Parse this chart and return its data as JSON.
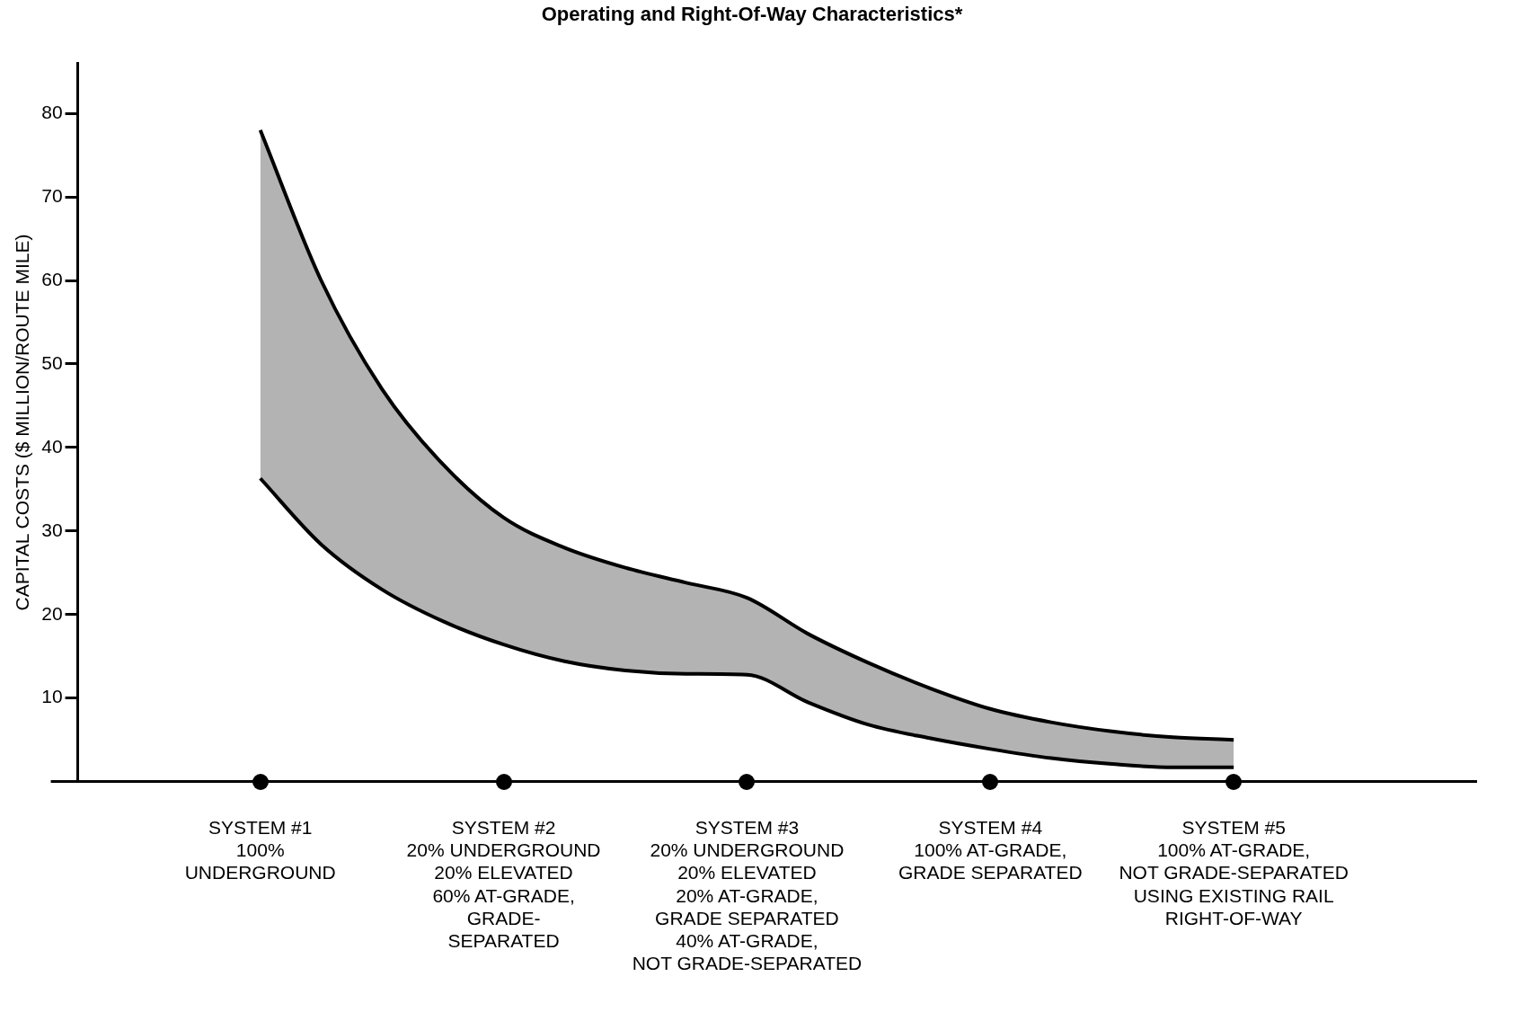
{
  "chart_data": {
    "type": "line",
    "title": "Operating and Right-Of-Way Characteristics*",
    "ylabel": "CAPITAL COSTS ($ MILLION/ROUTE MILE)",
    "categories": [
      null,
      null,
      null,
      "SYSTEM #1\n100%\nUNDERGROUND",
      null,
      null,
      null,
      "SYSTEM #2\n20% UNDERGROUND\n20% ELEVATED\n60% AT-GRADE,\nGRADE-\nSEPARATED",
      null,
      null,
      null,
      "SYSTEM #3\n20% UNDERGROUND\n20% ELEVATED\n20% AT-GRADE,\nGRADE SEPARATED\n40% AT-GRADE,\nNOT GRADE-SEPARATED",
      null,
      null,
      null,
      "SYSTEM #4\n100% AT-GRADE,\nGRADE SEPARATED",
      null,
      null,
      null,
      "SYSTEM #5\n100% AT-GRADE,\nNOT GRADE-SEPARATED\nUSING EXISTING RAIL\nRIGHT-OF-WAY",
      null,
      null,
      null,
      null
    ],
    "ylim": [
      0,
      86
    ],
    "yticks": [
      10,
      20,
      30,
      40,
      50,
      60,
      70,
      80
    ],
    "grid": false,
    "legend": false,
    "marker": "none",
    "line_style": "solid",
    "series": [
      {
        "type": "line",
        "color": "#000000",
        "values": [
          null,
          null,
          null,
          36.3,
          28.4,
          23,
          19.2,
          16.4,
          14.4,
          13.3,
          12.9,
          12.8,
          9.5,
          6.8,
          5.2,
          3.9,
          2.8,
          2.1,
          1.7,
          1.7,
          null,
          null,
          null,
          null
        ]
      },
      {
        "type": "area",
        "color": "#000000",
        "values": [
          null,
          null,
          null,
          78,
          60,
          47,
          38,
          31.6,
          28,
          25.6,
          23.8,
          22,
          17.7,
          14.2,
          11.2,
          8.7,
          7.1,
          6,
          5.3,
          5,
          null,
          null,
          null,
          null
        ]
      }
    ]
  }
}
